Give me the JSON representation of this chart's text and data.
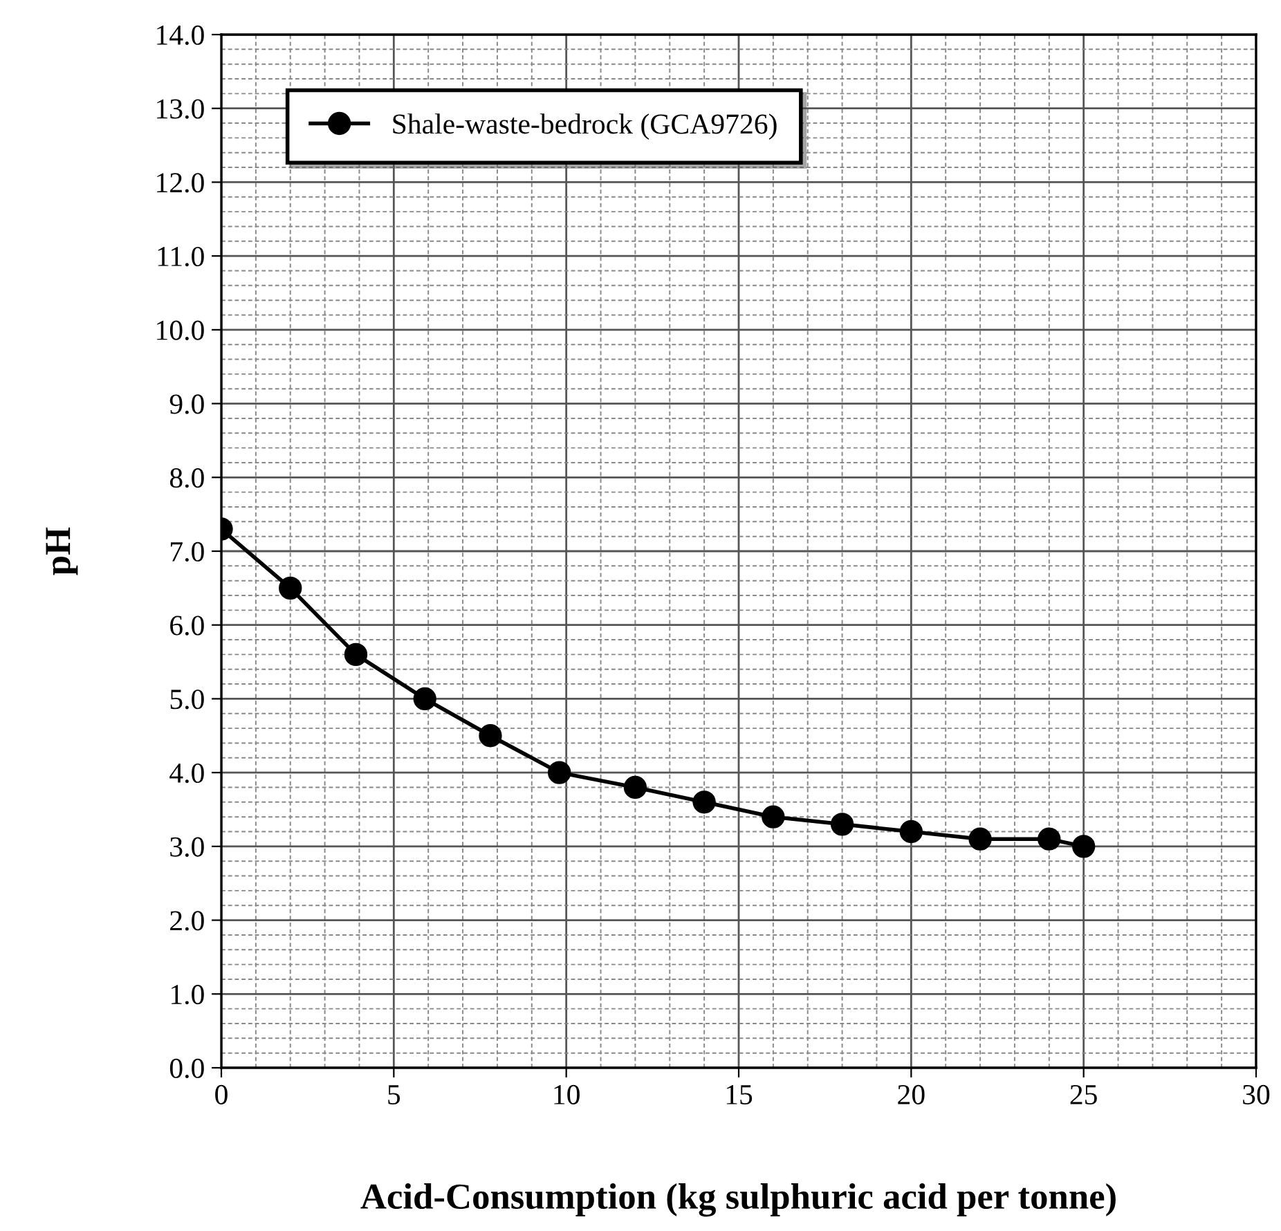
{
  "chart_data": {
    "type": "line",
    "xlabel": "Acid-Consumption (kg sulphuric acid per tonne)",
    "ylabel": "pH",
    "x": [
      0,
      2,
      3.9,
      5.9,
      7.8,
      9.8,
      12,
      14,
      16,
      18,
      20,
      22,
      24,
      25
    ],
    "series": [
      {
        "name": "Shale-waste-bedrock (GCA9726)",
        "color": "#000000",
        "values": [
          7.3,
          6.5,
          5.6,
          5.0,
          4.5,
          4.0,
          3.8,
          3.6,
          3.4,
          3.3,
          3.2,
          3.1,
          3.1,
          3.0
        ]
      }
    ],
    "xlim": [
      0,
      30
    ],
    "xticks": [
      0,
      5,
      10,
      15,
      20,
      25,
      30
    ],
    "ylim": [
      0,
      14
    ],
    "yticks": [
      {
        "value": 0,
        "label": "0.0"
      },
      {
        "value": 1,
        "label": "1.0"
      },
      {
        "value": 2,
        "label": "2.0"
      },
      {
        "value": 3,
        "label": "3.0"
      },
      {
        "value": 4,
        "label": "4.0"
      },
      {
        "value": 5,
        "label": "5.0"
      },
      {
        "value": 6,
        "label": "6.0"
      },
      {
        "value": 7,
        "label": "7.0"
      },
      {
        "value": 8,
        "label": "8.0"
      },
      {
        "value": 9,
        "label": "9.0"
      },
      {
        "value": 10,
        "label": "10.0"
      },
      {
        "value": 11,
        "label": "11.0"
      },
      {
        "value": 12,
        "label": "12.0"
      },
      {
        "value": 13,
        "label": "13.0"
      },
      {
        "value": 14,
        "label": "14.0"
      }
    ],
    "grid": true,
    "legend": "top left",
    "marker": "circle",
    "line_style": "solid"
  }
}
